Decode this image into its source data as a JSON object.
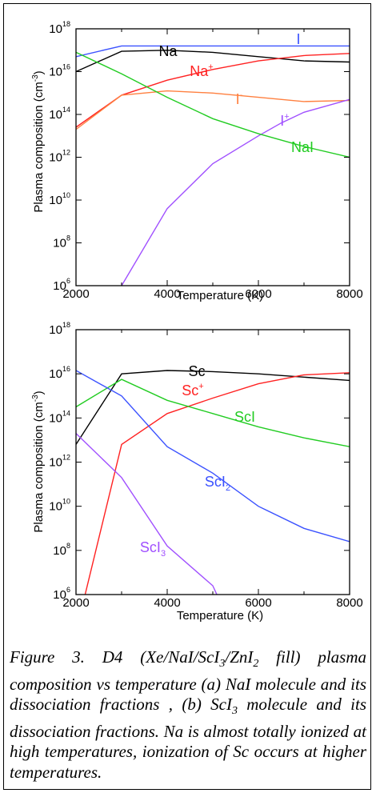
{
  "chart_data": [
    {
      "type": "line",
      "scale": "log-y",
      "xlabel": "Temperature (K)",
      "ylabel": "Plasma composition (cm-3)",
      "xlim": [
        2000,
        8000
      ],
      "ylim_exp": [
        6,
        18
      ],
      "x_ticks": [
        "2000",
        "4000",
        "6000",
        "8000"
      ],
      "y_ticks": [
        "10^6",
        "10^8",
        "10^10",
        "10^12",
        "10^14",
        "10^16",
        "10^18"
      ],
      "series": [
        {
          "name": "Na",
          "color": "#000000",
          "x": [
            2000,
            3000,
            4000,
            5000,
            6000,
            7000,
            8000
          ],
          "y_log10": [
            16.0,
            16.95,
            17.0,
            16.9,
            16.7,
            16.5,
            16.45
          ]
        },
        {
          "name": "I",
          "color": "#3b52ff",
          "x": [
            2000,
            3000,
            4000,
            5000,
            6000,
            7000,
            8000
          ],
          "y_log10": [
            16.7,
            17.2,
            17.2,
            17.2,
            17.2,
            17.2,
            17.2
          ]
        },
        {
          "name": "Na+",
          "color": "#ff2222",
          "x": [
            2000,
            3000,
            4000,
            5000,
            6000,
            7000,
            8000
          ],
          "y_log10": [
            13.4,
            14.9,
            15.6,
            16.1,
            16.5,
            16.75,
            16.85
          ]
        },
        {
          "name": "I-",
          "color": "#ff8040",
          "x": [
            2000,
            3000,
            4000,
            5000,
            6000,
            7000,
            8000
          ],
          "y_log10": [
            13.3,
            14.9,
            15.1,
            15.0,
            14.8,
            14.6,
            14.65
          ]
        },
        {
          "name": "I+",
          "color": "#a050ff",
          "x": [
            2000,
            2500,
            3000,
            4000,
            5000,
            6000,
            6500,
            7000,
            8000
          ],
          "y_log10": [
            3.0,
            4.5,
            6.0,
            9.6,
            11.7,
            13.0,
            13.6,
            14.1,
            14.7
          ]
        },
        {
          "name": "NaI",
          "color": "#22cc22",
          "x": [
            2000,
            3000,
            4000,
            5000,
            6000,
            7000,
            8000
          ],
          "y_log10": [
            16.9,
            15.9,
            14.8,
            13.8,
            13.1,
            12.5,
            12.0
          ]
        }
      ],
      "labels": [
        "Na",
        "I",
        "Na+",
        "I-",
        "I+",
        "NaI"
      ]
    },
    {
      "type": "line",
      "scale": "log-y",
      "xlabel": "Temperature (K)",
      "ylabel": "Plasma composition (cm-3)",
      "xlim": [
        2000,
        8000
      ],
      "ylim_exp": [
        6,
        18
      ],
      "x_ticks": [
        "2000",
        "4000",
        "6000",
        "8000"
      ],
      "y_ticks": [
        "10^6",
        "10^8",
        "10^10",
        "10^12",
        "10^14",
        "10^16",
        "10^18"
      ],
      "series": [
        {
          "name": "Sc",
          "color": "#000000",
          "x": [
            2000,
            3000,
            4000,
            5000,
            6000,
            7000,
            8000
          ],
          "y_log10": [
            12.8,
            16.0,
            16.15,
            16.1,
            16.0,
            15.85,
            15.7
          ]
        },
        {
          "name": "Sc+",
          "color": "#ff2222",
          "x": [
            2000,
            2200,
            3000,
            4000,
            5000,
            6000,
            7000,
            8000
          ],
          "y_log10": [
            3.0,
            6.0,
            12.8,
            14.2,
            14.9,
            15.55,
            15.95,
            16.05
          ]
        },
        {
          "name": "ScI",
          "color": "#22cc22",
          "x": [
            2000,
            3000,
            4000,
            5000,
            6000,
            7000,
            8000
          ],
          "y_log10": [
            14.5,
            15.75,
            14.8,
            14.2,
            13.6,
            13.1,
            12.7
          ]
        },
        {
          "name": "ScI2",
          "color": "#3b52ff",
          "x": [
            2000,
            3000,
            4000,
            5000,
            6000,
            7000,
            8000
          ],
          "y_log10": [
            16.15,
            15.0,
            12.7,
            11.5,
            10.0,
            9.0,
            8.4
          ]
        },
        {
          "name": "ScI3",
          "color": "#a050ff",
          "x": [
            2000,
            3000,
            4000,
            5000,
            5200
          ],
          "y_log10": [
            13.3,
            11.3,
            8.2,
            6.4,
            5.5
          ]
        }
      ],
      "labels": [
        "Sc",
        "Sc+",
        "ScI",
        "ScI2",
        "ScI3"
      ]
    }
  ],
  "caption": "Figure 3. D4 (Xe/NaI/ScI3/ZnI2 fill) plasma composition vs temperature (a) NaI molecule and its dissociation fractions , (b) ScI3 molecule and its dissociation fractions. Na is almost totally ionized at high temperatures, ionization of Sc occurs at higher temperatures."
}
